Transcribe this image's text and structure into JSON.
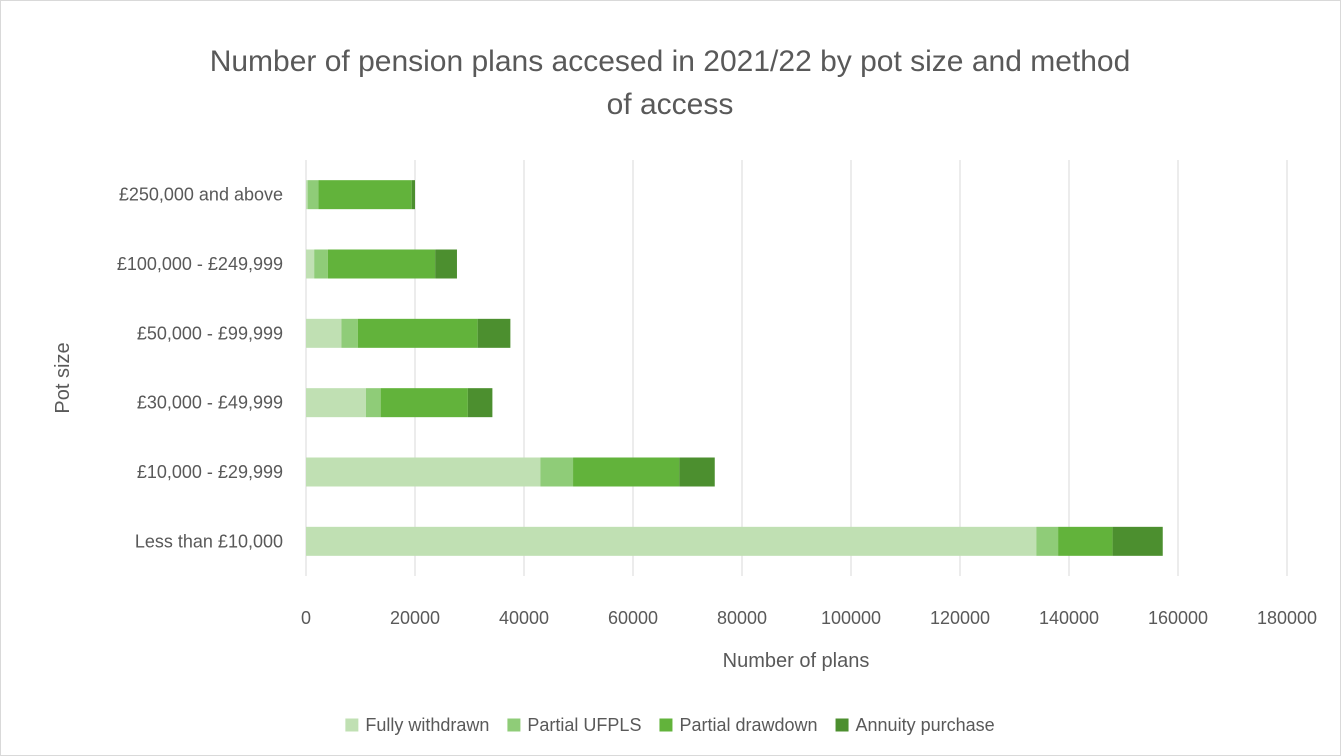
{
  "chart_data": {
    "type": "bar",
    "orientation": "horizontal",
    "stacked": true,
    "title_lines": [
      "Number of pension plans accesed in 2021/22 by pot size and method",
      "of access"
    ],
    "xlabel": "Number of plans",
    "ylabel": "Pot size",
    "xlim": [
      0,
      180000
    ],
    "x_ticks": [
      "0",
      "20000",
      "40000",
      "60000",
      "80000",
      "100000",
      "120000",
      "140000",
      "160000",
      "180000"
    ],
    "grid": "vertical",
    "legend_position": "bottom",
    "categories": [
      "Less than £10,000",
      "£10,000 - £29,999",
      "£30,000 - £49,999",
      "£50,000 - £99,999",
      "£100,000 - £249,999",
      "£250,000 and above"
    ],
    "series": [
      {
        "name": "Fully withdrawn",
        "color": "#c0e0b3",
        "values": [
          134000,
          43000,
          11000,
          6500,
          1500,
          300
        ]
      },
      {
        "name": "Partial UFPLS",
        "color": "#8fcc78",
        "values": [
          4000,
          6000,
          2700,
          3000,
          2500,
          2000
        ]
      },
      {
        "name": "Partial drawdown",
        "color": "#62b33b",
        "values": [
          10000,
          19500,
          16000,
          22000,
          19700,
          17100
        ]
      },
      {
        "name": "Annuity purchase",
        "color": "#4c8f2f",
        "values": [
          9200,
          6500,
          4500,
          6000,
          4000,
          600
        ]
      }
    ]
  }
}
